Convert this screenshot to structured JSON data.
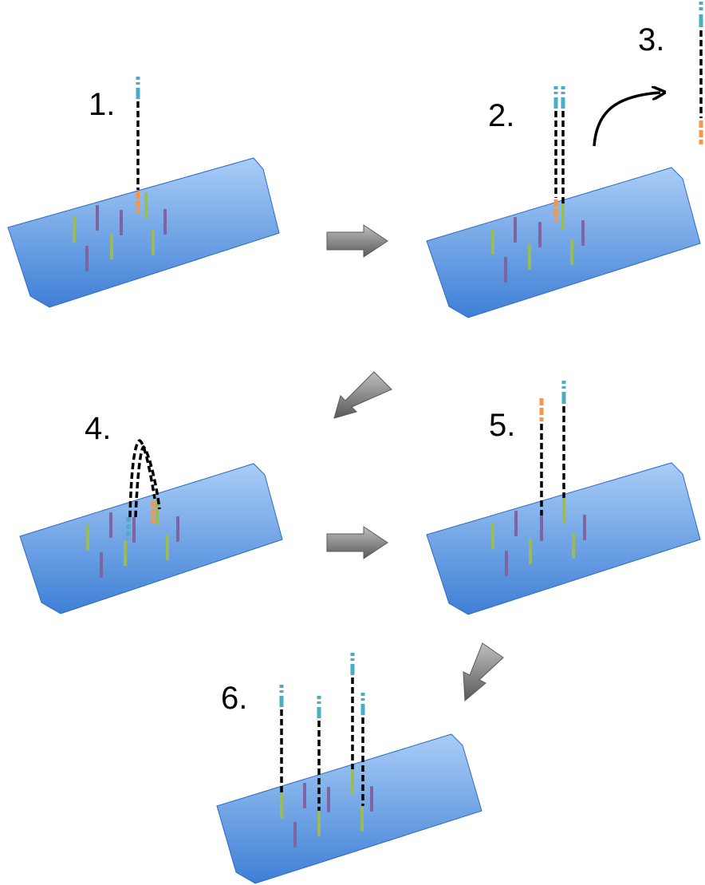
{
  "steps": [
    {
      "label": "1."
    },
    {
      "label": "2."
    },
    {
      "label": "3."
    },
    {
      "label": "4."
    },
    {
      "label": "5."
    },
    {
      "label": "6."
    }
  ],
  "colors": {
    "slide_top": "#a9cdf6",
    "slide_bottom": "#3e7fd6",
    "slide_stroke": "#2c6bc4",
    "primer_green": "#9bbb59",
    "primer_purple": "#8064a2",
    "strand": "#000000",
    "adapter_blue": "#4bacc6",
    "adapter_light_blue": "#b7dde8",
    "adapter_orange": "#f79646",
    "flow_arrow": "#7f7f7f",
    "curved_arrow": "#000000"
  }
}
